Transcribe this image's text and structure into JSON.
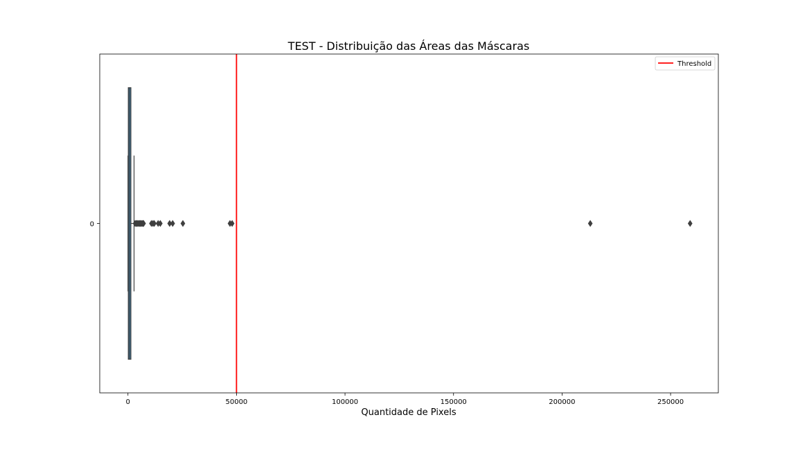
{
  "chart_data": {
    "type": "boxplot",
    "orientation": "horizontal",
    "title": "TEST - Distribuição das Áreas das Máscaras",
    "xlabel": "Quantidade de Pixels",
    "ylabel": "",
    "xlim": [
      -13000,
      272000
    ],
    "xticks": [
      0,
      50000,
      100000,
      150000,
      200000,
      250000
    ],
    "yticks": [
      "0"
    ],
    "box_color": "#3a7ca5",
    "box": {
      "category": "0",
      "q1": 150,
      "median": 700,
      "q3": 1350,
      "whisker_low": 0,
      "whisker_high": 2800
    },
    "outliers": [
      3300,
      3700,
      4100,
      4500,
      4900,
      5300,
      5700,
      6100,
      6500,
      6900,
      7200,
      10800,
      11500,
      12100,
      13900,
      14900,
      19200,
      20600,
      25300,
      47000,
      48000,
      213000,
      259000
    ],
    "threshold": {
      "value": 50000,
      "color": "#ff0000",
      "name": "Threshold"
    },
    "legend": {
      "position": "top-right",
      "entries": [
        "Threshold"
      ]
    },
    "grid": false
  }
}
